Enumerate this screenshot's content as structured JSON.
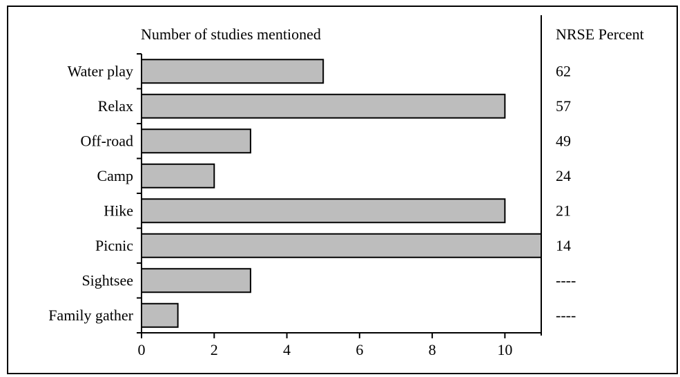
{
  "chart_data": {
    "type": "bar",
    "orientation": "horizontal",
    "title": "Number of studies mentioned",
    "categories": [
      "Water play",
      "Relax",
      "Off-road",
      "Camp",
      "Hike",
      "Picnic",
      "Sightsee",
      "Family gather"
    ],
    "values": [
      5,
      10,
      3,
      2,
      10,
      11,
      3,
      1
    ],
    "xlim": [
      0,
      11
    ],
    "x_ticks": [
      "0",
      "2",
      "4",
      "6",
      "8",
      "10"
    ],
    "bar_color": "#bdbdbd",
    "grid": false,
    "side_table": {
      "header": "NRSE Percent",
      "values": [
        "62",
        "57",
        "49",
        "24",
        "21",
        "14",
        "----",
        "----"
      ]
    }
  }
}
